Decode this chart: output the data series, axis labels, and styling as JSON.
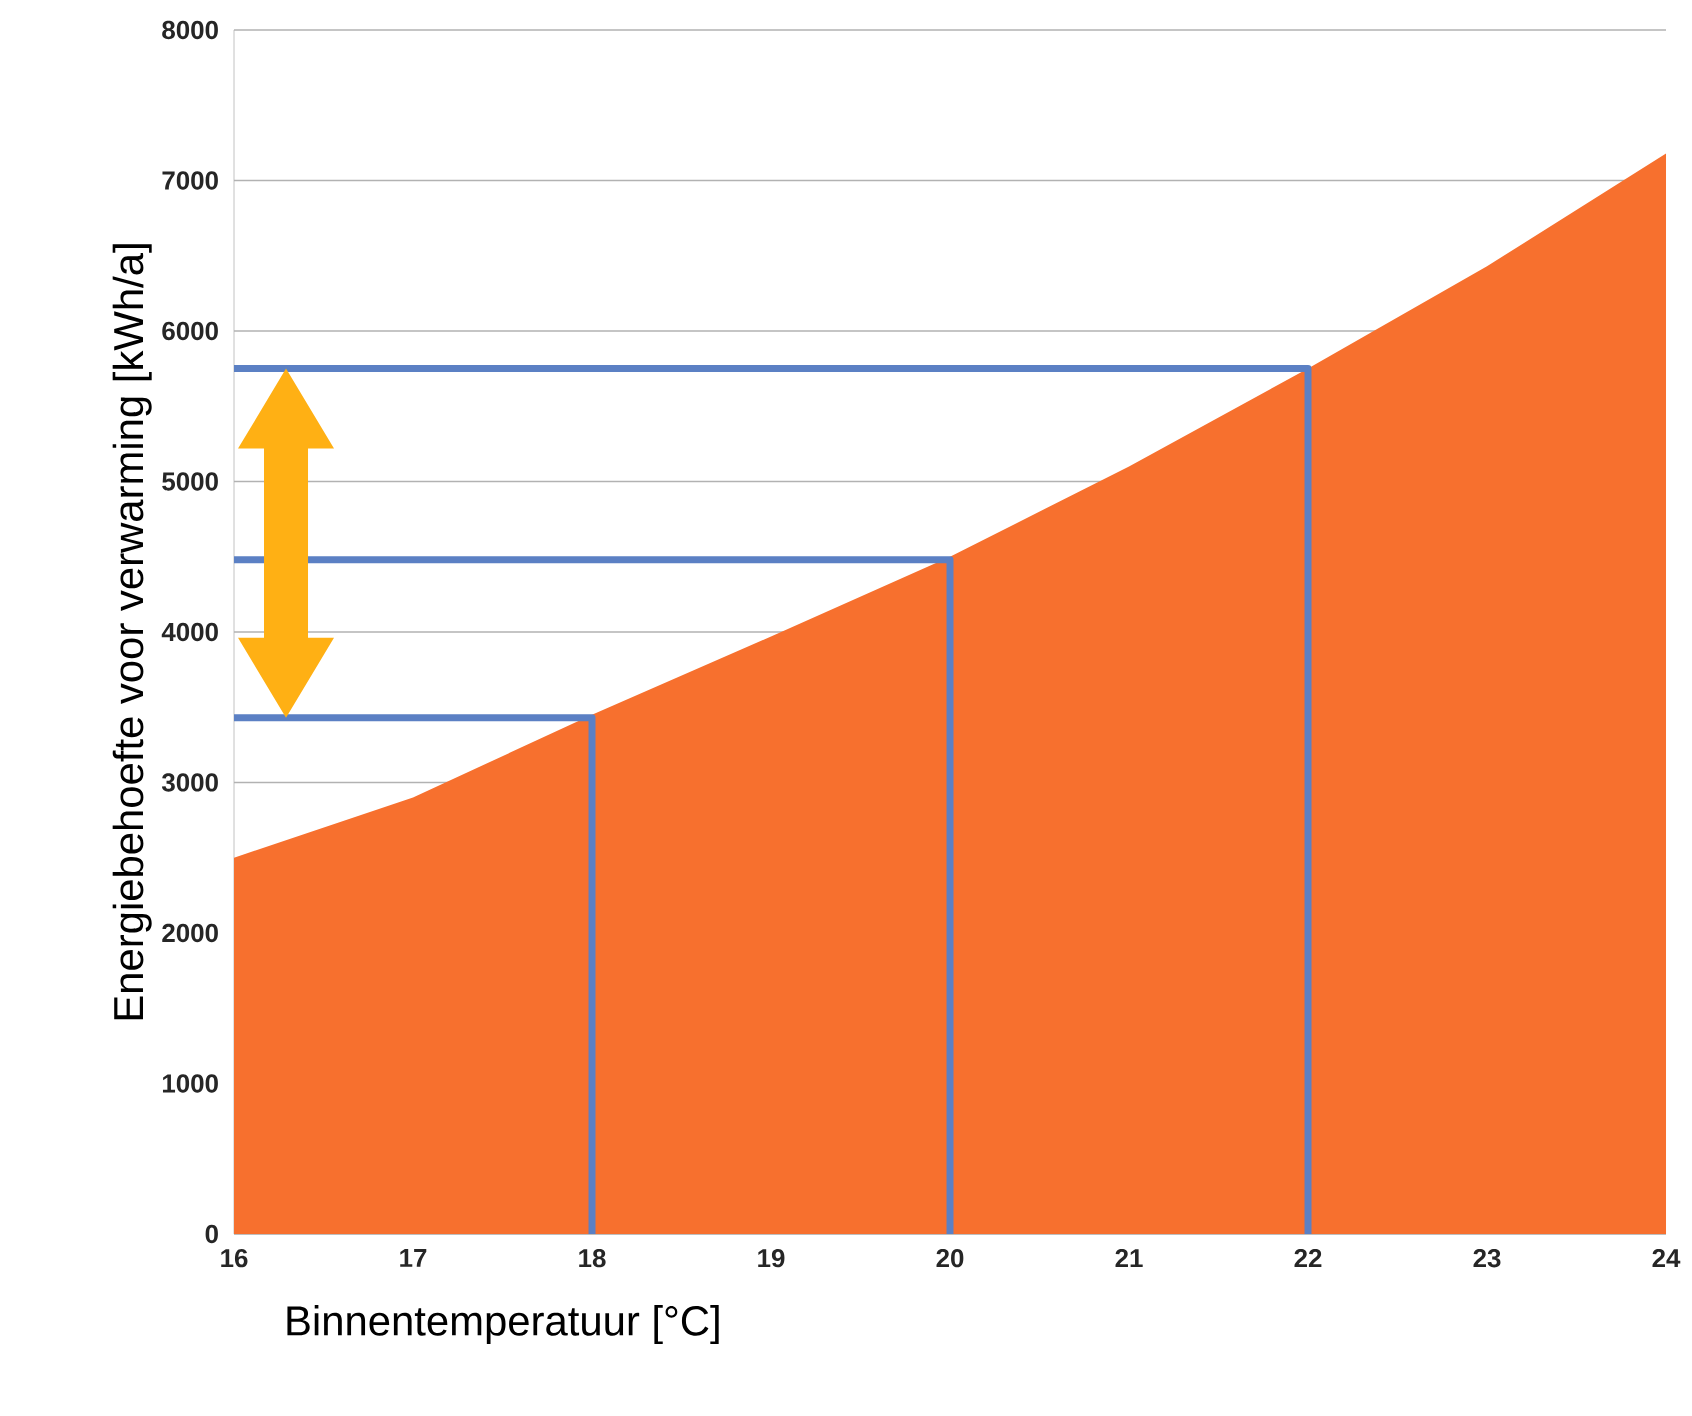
{
  "chart_data": {
    "type": "area",
    "xlabel": "Binnentemperatuur [°C]",
    "ylabel": "Energiebehoefte voor verwarming [kWh/a]",
    "x": [
      16,
      17,
      18,
      19,
      20,
      21,
      22,
      23,
      24
    ],
    "xlim": [
      16,
      24
    ],
    "xticks": [
      16,
      17,
      18,
      19,
      20,
      21,
      22,
      23,
      24
    ],
    "ylim": [
      0,
      8000
    ],
    "yticks": [
      0,
      1000,
      2000,
      3000,
      4000,
      5000,
      6000,
      7000,
      8000
    ],
    "grid": "y",
    "series": [
      {
        "color": "#f7702e",
        "values": [
          2500,
          2900,
          3450,
          3970,
          4500,
          5100,
          5750,
          6430,
          7180
        ]
      },
      {
        "type": "line",
        "color": "#5b80c4",
        "x": [
          16,
          18,
          18
        ],
        "values": [
          3430,
          3430,
          0
        ]
      },
      {
        "type": "line",
        "color": "#5b80c4",
        "x": [
          16,
          20,
          20
        ],
        "values": [
          4480,
          4480,
          0
        ]
      },
      {
        "type": "line",
        "color": "#5b80c4",
        "x": [
          16,
          22,
          22
        ],
        "values": [
          5750,
          5750,
          0
        ]
      }
    ]
  }
}
